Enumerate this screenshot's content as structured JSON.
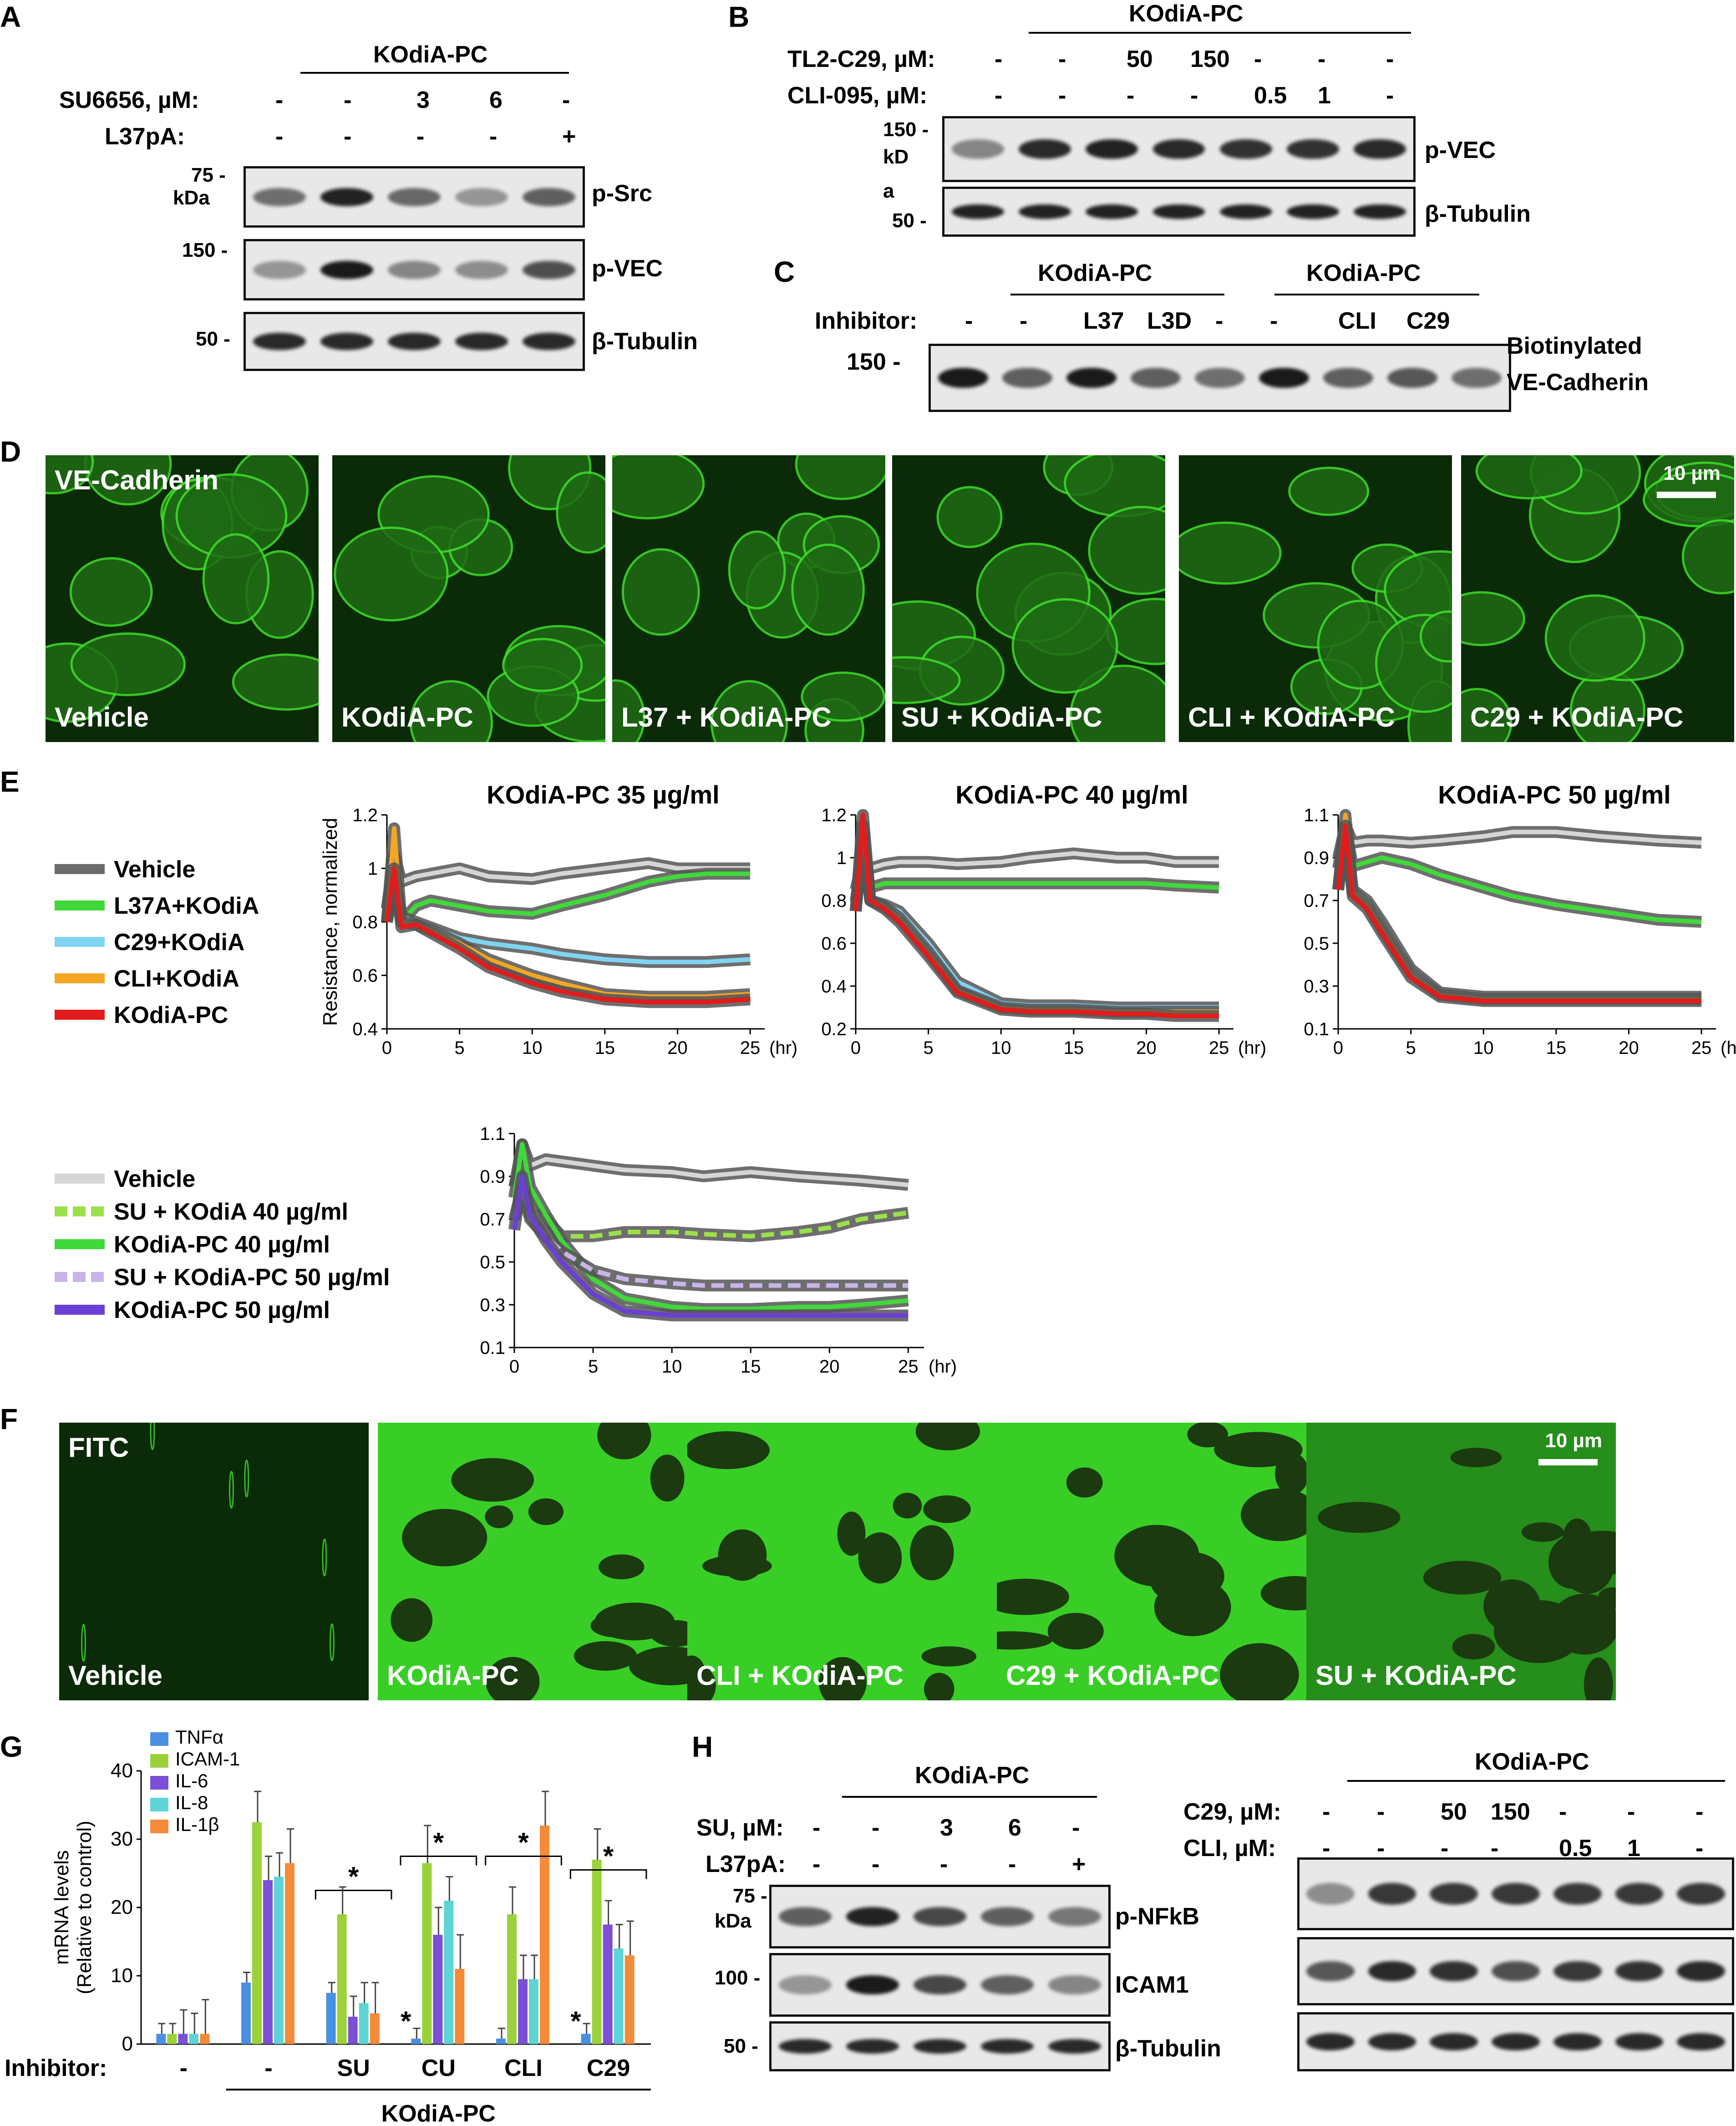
{
  "panelA": {
    "label": "A",
    "group": "KOdiA-PC",
    "rows": [
      {
        "name": "SU6656, µM:",
        "values": [
          "-",
          "-",
          "3",
          "6",
          "-"
        ]
      },
      {
        "name": "L37pA:",
        "values": [
          "-",
          "-",
          "-",
          "-",
          "+"
        ]
      }
    ],
    "mw": [
      "75 -",
      "kDa",
      "150 -",
      "50 -"
    ],
    "blots": [
      "p-Src",
      "p-VEC",
      "β-Tubulin"
    ]
  },
  "panelB": {
    "label": "B",
    "group": "KOdiA-PC",
    "rows": [
      {
        "name": "TL2-C29, µM:",
        "values": [
          "-",
          "-",
          "50",
          "150",
          "-",
          "-",
          "-"
        ]
      },
      {
        "name": "CLI-095, µM:",
        "values": [
          "-",
          "-",
          "-",
          "-",
          "0.5",
          "1",
          "-"
        ]
      }
    ],
    "mw": [
      "150 -",
      "kD",
      "a",
      "50 -"
    ],
    "blots": [
      "p-VEC",
      "β-Tubulin"
    ]
  },
  "panelC": {
    "label": "C",
    "group1": "KOdiA-PC",
    "group2": "KOdiA-PC",
    "row_name": "Inhibitor:",
    "values": [
      "-",
      "-",
      "L37",
      "L3D",
      "-",
      "-",
      "CLI",
      "C29"
    ],
    "mw": "150 -",
    "blot1": "Biotinylated",
    "blot2": "VE-Cadherin"
  },
  "panelD": {
    "label": "D",
    "stain": "VE-Cadherin",
    "scale": "10 µm",
    "captions": [
      "Vehicle",
      "KOdiA-PC",
      "L37 + KOdiA-PC",
      "SU + KOdiA-PC",
      "CLI + KOdiA-PC",
      "C29 + KOdiA-PC"
    ]
  },
  "panelE": {
    "label": "E",
    "ylabel": "Resistance, normalized",
    "xunit": "(hr)",
    "legend1": [
      "Vehicle",
      "L37A+KOdiA",
      "C29+KOdiA",
      "CLI+KOdiA",
      "KOdiA-PC"
    ],
    "legend2": [
      "Vehicle",
      "SU + KOdiA 40 µg/ml",
      "KOdiA-PC 40 µg/ml",
      "SU + KOdiA-PC 50 µg/ml",
      "KOdiA-PC 50 µg/ml"
    ]
  },
  "panelF": {
    "label": "F",
    "stain": "FITC",
    "scale": "10 µm",
    "captions": [
      "Vehicle",
      "KOdiA-PC",
      "CLI + KOdiA-PC",
      "C29 + KOdiA-PC",
      "SU + KOdiA-PC"
    ]
  },
  "panelG": {
    "label": "G",
    "ylabel1": "mRNA levels",
    "ylabel2": "(Relative to control)",
    "xrow": "Inhibitor:",
    "group": "KOdiA-PC",
    "star": "*"
  },
  "panelH": {
    "label": "H",
    "group_left": "KOdiA-PC",
    "group_right": "KOdiA-PC",
    "rows_left": [
      {
        "name": "SU, µM:",
        "values": [
          "-",
          "-",
          "3",
          "6",
          "-"
        ]
      },
      {
        "name": "L37pA:",
        "values": [
          "-",
          "-",
          "-",
          "-",
          "+"
        ]
      }
    ],
    "rows_right": [
      {
        "name": "C29, µM:",
        "values": [
          "-",
          "-",
          "50",
          "150",
          "-",
          "-",
          "-"
        ]
      },
      {
        "name": "CLI, µM:",
        "values": [
          "-",
          "-",
          "-",
          "-",
          "0.5",
          "1",
          "-"
        ]
      }
    ],
    "mw": [
      "75 -",
      "kDa",
      "100 -",
      "50 -"
    ],
    "blots": [
      "p-NFkB",
      "ICAM1",
      "β-Tubulin"
    ]
  },
  "colors": {
    "vehicle": "#6b6b6b",
    "vehicle_light": "#d6d6d6",
    "l37": "#3fd93a",
    "c29": "#7fd4f2",
    "cli": "#f5a623",
    "kodia": "#e31b1b",
    "su40": "#9be04a",
    "su50": "#c9b4e8",
    "kodia50": "#6a3fd6",
    "tnfa": "#4a90e2",
    "icam1": "#9bd23a",
    "il6": "#7b4fd6",
    "il8": "#5fd4d4",
    "il1b": "#f58a3a",
    "micro_green": "#3ee02a"
  },
  "chart_data": [
    {
      "type": "line",
      "title": "KOdiA-PC 35 µg/ml",
      "ylabel": "Resistance, normalized",
      "xlabel": "(hr)",
      "xlim": [
        0,
        26
      ],
      "ylim": [
        0.4,
        1.2
      ],
      "xticks": [
        0,
        5,
        10,
        15,
        20,
        25
      ],
      "yticks": [
        0.4,
        0.6,
        0.8,
        1,
        1.2
      ],
      "x": [
        0,
        0.5,
        1,
        2,
        3,
        5,
        7,
        10,
        12,
        15,
        18,
        20,
        22,
        25
      ],
      "series": [
        {
          "name": "Vehicle",
          "values": [
            0.85,
            1.05,
            0.95,
            0.97,
            0.98,
            1.0,
            0.97,
            0.96,
            0.98,
            1.0,
            1.02,
            1.0,
            1.0,
            1.0
          ]
        },
        {
          "name": "L37A+KOdiA",
          "values": [
            0.85,
            1.0,
            0.8,
            0.86,
            0.88,
            0.86,
            0.84,
            0.83,
            0.86,
            0.9,
            0.95,
            0.97,
            0.98,
            0.98
          ]
        },
        {
          "name": "C29+KOdiA",
          "values": [
            0.8,
            0.95,
            0.82,
            0.8,
            0.78,
            0.74,
            0.72,
            0.7,
            0.68,
            0.66,
            0.65,
            0.65,
            0.65,
            0.66
          ]
        },
        {
          "name": "CLI+KOdiA",
          "values": [
            0.8,
            1.15,
            0.8,
            0.79,
            0.77,
            0.72,
            0.66,
            0.6,
            0.57,
            0.53,
            0.52,
            0.52,
            0.52,
            0.53
          ]
        },
        {
          "name": "KOdiA-PC",
          "values": [
            0.8,
            1.0,
            0.78,
            0.79,
            0.76,
            0.7,
            0.63,
            0.57,
            0.54,
            0.51,
            0.5,
            0.5,
            0.5,
            0.51
          ]
        }
      ]
    },
    {
      "type": "line",
      "title": "KOdiA-PC 40 µg/ml",
      "xlabel": "(hr)",
      "xlim": [
        0,
        26
      ],
      "ylim": [
        0.2,
        1.2
      ],
      "xticks": [
        0,
        5,
        10,
        15,
        20,
        25
      ],
      "yticks": [
        0.2,
        0.4,
        0.6,
        0.8,
        1,
        1.2
      ],
      "x": [
        0,
        0.5,
        1,
        2,
        3,
        5,
        7,
        10,
        12,
        15,
        18,
        20,
        22,
        25
      ],
      "series": [
        {
          "name": "Vehicle",
          "values": [
            0.85,
            1.0,
            0.95,
            0.97,
            0.98,
            0.98,
            0.97,
            0.98,
            1.0,
            1.02,
            1.0,
            1.0,
            0.98,
            0.98
          ]
        },
        {
          "name": "L37A+KOdiA",
          "values": [
            0.8,
            1.0,
            0.86,
            0.88,
            0.88,
            0.88,
            0.88,
            0.88,
            0.88,
            0.88,
            0.88,
            0.88,
            0.87,
            0.86
          ]
        },
        {
          "name": "C29+KOdiA",
          "values": [
            0.75,
            1.1,
            0.8,
            0.78,
            0.75,
            0.6,
            0.42,
            0.32,
            0.31,
            0.31,
            0.3,
            0.3,
            0.3,
            0.3
          ]
        },
        {
          "name": "CLI+KOdiA",
          "values": [
            0.75,
            1.15,
            0.8,
            0.77,
            0.72,
            0.56,
            0.38,
            0.3,
            0.29,
            0.29,
            0.28,
            0.28,
            0.28,
            0.28
          ]
        },
        {
          "name": "KOdiA-PC",
          "values": [
            0.75,
            1.2,
            0.8,
            0.76,
            0.7,
            0.54,
            0.37,
            0.29,
            0.28,
            0.28,
            0.27,
            0.27,
            0.26,
            0.26
          ]
        }
      ]
    },
    {
      "type": "line",
      "title": "KOdiA-PC 50 µg/ml",
      "xlabel": "(hr)",
      "xlim": [
        0,
        26
      ],
      "ylim": [
        0.1,
        1.1
      ],
      "xticks": [
        0,
        5,
        10,
        15,
        20,
        25
      ],
      "yticks": [
        0.1,
        0.3,
        0.5,
        0.7,
        0.9,
        1.1
      ],
      "x": [
        0,
        0.5,
        1,
        2,
        3,
        5,
        7,
        10,
        12,
        15,
        18,
        20,
        22,
        25
      ],
      "series": [
        {
          "name": "Vehicle",
          "values": [
            0.9,
            1.05,
            0.97,
            0.98,
            0.98,
            0.97,
            0.98,
            1.0,
            1.02,
            1.02,
            1.0,
            0.99,
            0.98,
            0.97
          ]
        },
        {
          "name": "L37A+KOdiA",
          "values": [
            0.85,
            1.05,
            0.86,
            0.88,
            0.9,
            0.87,
            0.82,
            0.76,
            0.72,
            0.68,
            0.65,
            0.63,
            0.61,
            0.6
          ]
        },
        {
          "name": "C29+KOdiA",
          "values": [
            0.75,
            1.05,
            0.75,
            0.7,
            0.6,
            0.38,
            0.27,
            0.25,
            0.25,
            0.25,
            0.25,
            0.25,
            0.25,
            0.25
          ]
        },
        {
          "name": "CLI+KOdiA",
          "values": [
            0.75,
            1.1,
            0.74,
            0.68,
            0.57,
            0.36,
            0.26,
            0.24,
            0.24,
            0.24,
            0.24,
            0.24,
            0.24,
            0.24
          ]
        },
        {
          "name": "KOdiA-PC",
          "values": [
            0.75,
            1.05,
            0.72,
            0.66,
            0.55,
            0.34,
            0.25,
            0.23,
            0.23,
            0.23,
            0.23,
            0.23,
            0.23,
            0.23
          ]
        }
      ]
    },
    {
      "type": "line",
      "xlabel": "(hr)",
      "xlim": [
        0,
        26
      ],
      "ylim": [
        0.1,
        1.1
      ],
      "xticks": [
        0,
        5,
        10,
        15,
        20,
        25
      ],
      "yticks": [
        0.1,
        0.3,
        0.5,
        0.7,
        0.9,
        1.1
      ],
      "x": [
        0,
        0.5,
        1,
        2,
        3,
        5,
        7,
        10,
        12,
        15,
        18,
        20,
        22,
        25
      ],
      "series": [
        {
          "name": "Vehicle",
          "values": [
            0.85,
            1.05,
            0.95,
            0.98,
            0.97,
            0.95,
            0.93,
            0.92,
            0.9,
            0.92,
            0.9,
            0.89,
            0.88,
            0.86
          ]
        },
        {
          "name": "SU + KOdiA 40 µg/ml",
          "values": [
            0.85,
            0.95,
            0.8,
            0.7,
            0.62,
            0.62,
            0.64,
            0.64,
            0.63,
            0.62,
            0.64,
            0.66,
            0.7,
            0.73
          ]
        },
        {
          "name": "KOdiA-PC 40 µg/ml",
          "values": [
            0.8,
            1.05,
            0.85,
            0.72,
            0.6,
            0.42,
            0.33,
            0.29,
            0.28,
            0.28,
            0.29,
            0.29,
            0.3,
            0.32
          ]
        },
        {
          "name": "SU + KOdiA-PC 50 µg/ml",
          "values": [
            0.7,
            0.85,
            0.7,
            0.62,
            0.55,
            0.46,
            0.42,
            0.4,
            0.39,
            0.39,
            0.39,
            0.39,
            0.39,
            0.39
          ]
        },
        {
          "name": "KOdiA-PC 50 µg/ml",
          "values": [
            0.65,
            0.9,
            0.72,
            0.6,
            0.5,
            0.35,
            0.27,
            0.25,
            0.25,
            0.25,
            0.25,
            0.25,
            0.25,
            0.25
          ]
        }
      ]
    },
    {
      "type": "bar",
      "ylabel": "mRNA levels (Relative to control)",
      "ylim": [
        0,
        40
      ],
      "yticks": [
        0,
        10,
        20,
        30,
        40
      ],
      "categories": [
        "-",
        "-",
        "SU",
        "CU",
        "CLI",
        "C29"
      ],
      "series": [
        {
          "name": "TNFα",
          "values": [
            1.5,
            9,
            7.5,
            0.8,
            0.8,
            1.5
          ]
        },
        {
          "name": "ICAM-1",
          "values": [
            1.5,
            32.5,
            19,
            26.5,
            19,
            27
          ]
        },
        {
          "name": "IL-6",
          "values": [
            1.5,
            24,
            4,
            16,
            9.5,
            17.5
          ]
        },
        {
          "name": "IL-8",
          "values": [
            1.5,
            24.5,
            6,
            21,
            9.5,
            14
          ]
        },
        {
          "name": "IL-1β",
          "values": [
            1.5,
            26.5,
            4.5,
            11,
            32,
            13
          ]
        }
      ],
      "errors": [
        [
          1.5,
          1.5,
          1.5,
          1.5,
          1.5,
          1.5
        ],
        [
          1.5,
          4.5,
          4,
          5.5,
          4,
          4.5
        ],
        [
          3.5,
          3.5,
          3,
          4,
          3.5,
          3.5
        ],
        [
          3,
          3.5,
          3,
          3.5,
          3.5,
          3.5
        ],
        [
          5,
          5,
          4.5,
          5,
          5,
          5
        ]
      ]
    }
  ]
}
